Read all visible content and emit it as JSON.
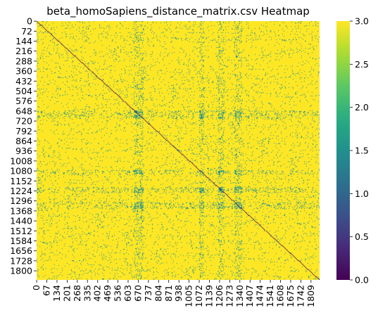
{
  "chart_data": {
    "type": "heatmap",
    "title": "beta_homoSapiens_distance_matrix.csv Heatmap",
    "xlabel": "",
    "ylabel": "",
    "n": 1866,
    "colormap": "viridis",
    "value_range": [
      0,
      3.0
    ],
    "diagonal_value": 0,
    "dominant_value": 3.0,
    "secondary_value": 1.5,
    "colorbar_ticks": [
      "0.0",
      "0.5",
      "1.0",
      "1.5",
      "2.0",
      "2.5",
      "3.0"
    ],
    "colorbar_values": [
      0,
      0.5,
      1.0,
      1.5,
      2.0,
      2.5,
      3.0
    ],
    "x_tick_labels": [
      "0",
      "67",
      "134",
      "201",
      "268",
      "335",
      "402",
      "469",
      "536",
      "603",
      "670",
      "737",
      "804",
      "871",
      "938",
      "1005",
      "1072",
      "1139",
      "1206",
      "1273",
      "1340",
      "1407",
      "1474",
      "1541",
      "1608",
      "1675",
      "1742",
      "1809"
    ],
    "x_tick_values": [
      0,
      67,
      134,
      201,
      268,
      335,
      402,
      469,
      536,
      603,
      670,
      737,
      804,
      871,
      938,
      1005,
      1072,
      1139,
      1206,
      1273,
      1340,
      1407,
      1474,
      1541,
      1608,
      1675,
      1742,
      1809
    ],
    "y_tick_labels": [
      "0",
      "72",
      "144",
      "216",
      "288",
      "360",
      "432",
      "504",
      "576",
      "648",
      "720",
      "792",
      "864",
      "936",
      "1008",
      "1080",
      "1152",
      "1224",
      "1296",
      "1368",
      "1440",
      "1512",
      "1584",
      "1656",
      "1728",
      "1800"
    ],
    "y_tick_values": [
      0,
      72,
      144,
      216,
      288,
      360,
      432,
      504,
      576,
      648,
      720,
      792,
      864,
      936,
      1008,
      1080,
      1152,
      1224,
      1296,
      1368,
      1440,
      1512,
      1584,
      1656,
      1728,
      1800
    ],
    "dense_band_ranges": [
      [
        640,
        700
      ],
      [
        1070,
        1100
      ],
      [
        1195,
        1235
      ],
      [
        1300,
        1350
      ]
    ],
    "colors": {
      "high": "#fde725",
      "mid": "#21918c",
      "low": "#440154"
    }
  }
}
